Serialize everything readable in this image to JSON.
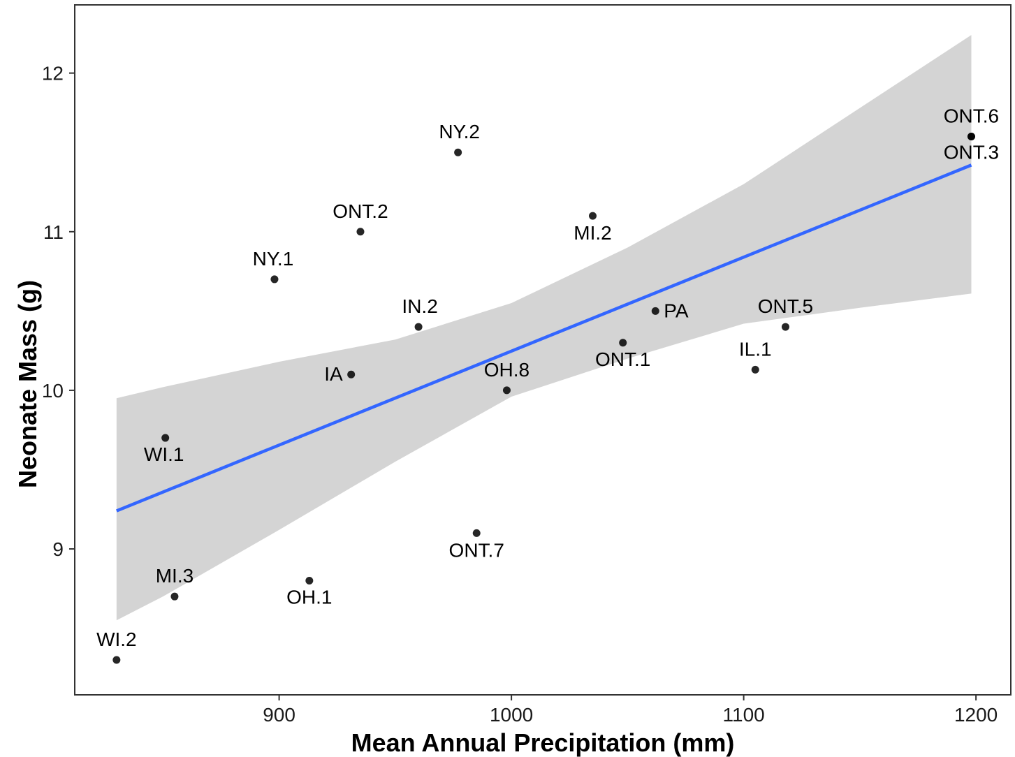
{
  "chart_data": {
    "type": "scatter",
    "xlabel": "Mean Annual Precipitation (mm)",
    "ylabel": "Neonate Mass (g)",
    "xlim": [
      812,
      1215
    ],
    "ylim": [
      8.08,
      12.43
    ],
    "xticks": [
      900,
      1000,
      1100,
      1200
    ],
    "yticks": [
      9,
      10,
      11,
      12
    ],
    "grid": false,
    "points": [
      {
        "label": "WI.2",
        "x": 830,
        "y": 8.3
      },
      {
        "label": "MI.3",
        "x": 855,
        "y": 8.7
      },
      {
        "label": "WI.1",
        "x": 851,
        "y": 9.7
      },
      {
        "label": "NY.1",
        "x": 898,
        "y": 10.7
      },
      {
        "label": "OH.1",
        "x": 913,
        "y": 8.8
      },
      {
        "label": "IA",
        "x": 931,
        "y": 10.1
      },
      {
        "label": "ONT.2",
        "x": 935,
        "y": 11.0
      },
      {
        "label": "IN.2",
        "x": 960,
        "y": 10.4
      },
      {
        "label": "NY.2",
        "x": 977,
        "y": 11.5
      },
      {
        "label": "ONT.7",
        "x": 985,
        "y": 9.1
      },
      {
        "label": "OH.8",
        "x": 998,
        "y": 10.0
      },
      {
        "label": "MI.2",
        "x": 1035,
        "y": 11.1
      },
      {
        "label": "ONT.1",
        "x": 1048,
        "y": 10.3
      },
      {
        "label": "PA",
        "x": 1062,
        "y": 10.5
      },
      {
        "label": "IL.1",
        "x": 1105,
        "y": 10.13
      },
      {
        "label": "ONT.5",
        "x": 1118,
        "y": 10.4
      },
      {
        "label": "ONT.6",
        "x": 1198,
        "y": 11.6
      },
      {
        "label": "ONT.3",
        "x": 1198,
        "y": 11.6
      }
    ],
    "regression": {
      "x": [
        830,
        1198
      ],
      "y": [
        9.24,
        11.42
      ],
      "color": "#3366ff"
    },
    "confidence_band": {
      "x": [
        830,
        850,
        900,
        950,
        1000,
        1050,
        1100,
        1150,
        1198
      ],
      "upper": [
        9.95,
        10.02,
        10.18,
        10.32,
        10.55,
        10.9,
        11.3,
        11.78,
        12.24
      ],
      "lower": [
        8.55,
        8.7,
        9.12,
        9.55,
        9.96,
        10.2,
        10.42,
        10.52,
        10.61
      ],
      "color": "#d4d4d4"
    },
    "point_color": "#000000"
  }
}
